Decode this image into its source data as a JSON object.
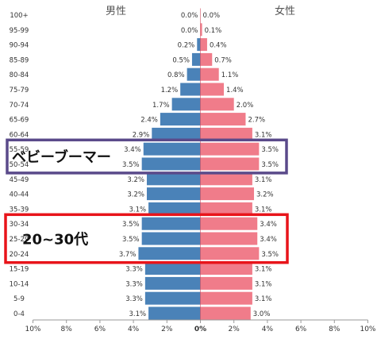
{
  "chart_data": {
    "type": "bar",
    "orientation": "horizontal",
    "layout": "population-pyramid",
    "title": "",
    "xlabel": "",
    "ylabel": "",
    "xlim": [
      -10,
      10
    ],
    "x_ticks": [
      "10%",
      "8%",
      "6%",
      "4%",
      "2%",
      "0%",
      "2%",
      "4%",
      "6%",
      "8%",
      "10%"
    ],
    "grid": false,
    "categories": [
      "0-4",
      "5-9",
      "10-14",
      "15-19",
      "20-24",
      "25-29",
      "30-34",
      "35-39",
      "40-44",
      "45-49",
      "50-54",
      "55-59",
      "60-64",
      "65-69",
      "70-74",
      "75-79",
      "80-84",
      "85-89",
      "90-94",
      "95-99",
      "100+"
    ],
    "series": [
      {
        "name": "男性",
        "color": "#4a82b8",
        "values": [
          3.1,
          3.3,
          3.3,
          3.3,
          3.7,
          3.5,
          3.5,
          3.1,
          3.2,
          3.2,
          3.5,
          3.4,
          2.9,
          2.4,
          1.7,
          1.2,
          0.8,
          0.5,
          0.2,
          0.0,
          0.0
        ],
        "labels": [
          "3.1%",
          "3.3%",
          "3.3%",
          "3.3%",
          "3.7%",
          "3.5%",
          "3.5%",
          "3.1%",
          "3.2%",
          "3.2%",
          "3.5%",
          "3.4%",
          "2.9%",
          "2.4%",
          "1.7%",
          "1.2%",
          "0.8%",
          "0.5%",
          "0.2%",
          "0.0%",
          "0.0%"
        ]
      },
      {
        "name": "女性",
        "color": "#f07c8a",
        "values": [
          3.0,
          3.1,
          3.1,
          3.1,
          3.5,
          3.4,
          3.4,
          3.1,
          3.2,
          3.1,
          3.5,
          3.5,
          3.1,
          2.7,
          2.0,
          1.4,
          1.1,
          0.7,
          0.4,
          0.1,
          0.0
        ],
        "labels": [
          "3.0%",
          "3.1%",
          "3.1%",
          "3.1%",
          "3.5%",
          "3.4%",
          "3.4%",
          "3.1%",
          "3.2%",
          "3.1%",
          "3.5%",
          "3.5%",
          "3.1%",
          "2.7%",
          "2.0%",
          "1.4%",
          "1.1%",
          "0.7%",
          "0.4%",
          "0.1%",
          "0.0%"
        ]
      }
    ],
    "annotations": [
      {
        "text": "ベビーブーマー",
        "categories": [
          "50-54",
          "55-59"
        ],
        "border_color": "#5a4a8a"
      },
      {
        "text": "20~30代",
        "categories": [
          "20-24",
          "25-29",
          "30-34"
        ],
        "border_color": "#e8141a"
      }
    ]
  }
}
